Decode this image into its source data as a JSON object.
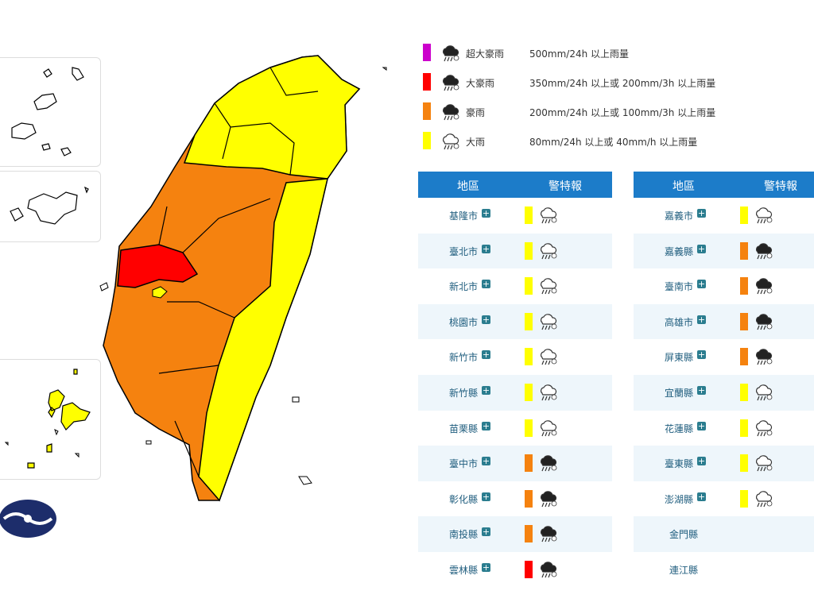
{
  "legend": [
    {
      "label": "超大豪雨",
      "description": "500mm/24h 以上雨量",
      "color": "#cc00cc"
    },
    {
      "label": "大豪雨",
      "description": "350mm/24h 以上或 200mm/3h 以上雨量",
      "color": "#ff0000"
    },
    {
      "label": "豪雨",
      "description": "200mm/24h 以上或 100mm/3h 以上雨量",
      "color": "#f5820f"
    },
    {
      "label": "大雨",
      "description": "80mm/24h 以上或 40mm/h 以上雨量",
      "color": "#ffff00"
    }
  ],
  "tables": [
    {
      "header": [
        "地區",
        "警特報"
      ],
      "rows": [
        {
          "name": "基隆市",
          "color": "#ffff00"
        },
        {
          "name": "臺北市",
          "color": "#ffff00"
        },
        {
          "name": "新北市",
          "color": "#ffff00"
        },
        {
          "name": "桃園市",
          "color": "#ffff00"
        },
        {
          "name": "新竹市",
          "color": "#ffff00"
        },
        {
          "name": "新竹縣",
          "color": "#ffff00"
        },
        {
          "name": "苗栗縣",
          "color": "#ffff00"
        },
        {
          "name": "臺中市",
          "color": "#f5820f"
        },
        {
          "name": "彰化縣",
          "color": "#f5820f"
        },
        {
          "name": "南投縣",
          "color": "#f5820f"
        },
        {
          "name": "雲林縣",
          "color": "#ff0000"
        }
      ]
    },
    {
      "header": [
        "地區",
        "警特報"
      ],
      "rows": [
        {
          "name": "嘉義市",
          "color": "#ffff00"
        },
        {
          "name": "嘉義縣",
          "color": "#f5820f"
        },
        {
          "name": "臺南市",
          "color": "#f5820f"
        },
        {
          "name": "高雄市",
          "color": "#f5820f"
        },
        {
          "name": "屏東縣",
          "color": "#f5820f"
        },
        {
          "name": "宜蘭縣",
          "color": "#ffff00"
        },
        {
          "name": "花蓮縣",
          "color": "#ffff00"
        },
        {
          "name": "臺東縣",
          "color": "#ffff00"
        },
        {
          "name": "澎湖縣",
          "color": "#ffff00"
        },
        {
          "name": "金門縣"
        },
        {
          "name": "連江縣"
        }
      ]
    }
  ]
}
